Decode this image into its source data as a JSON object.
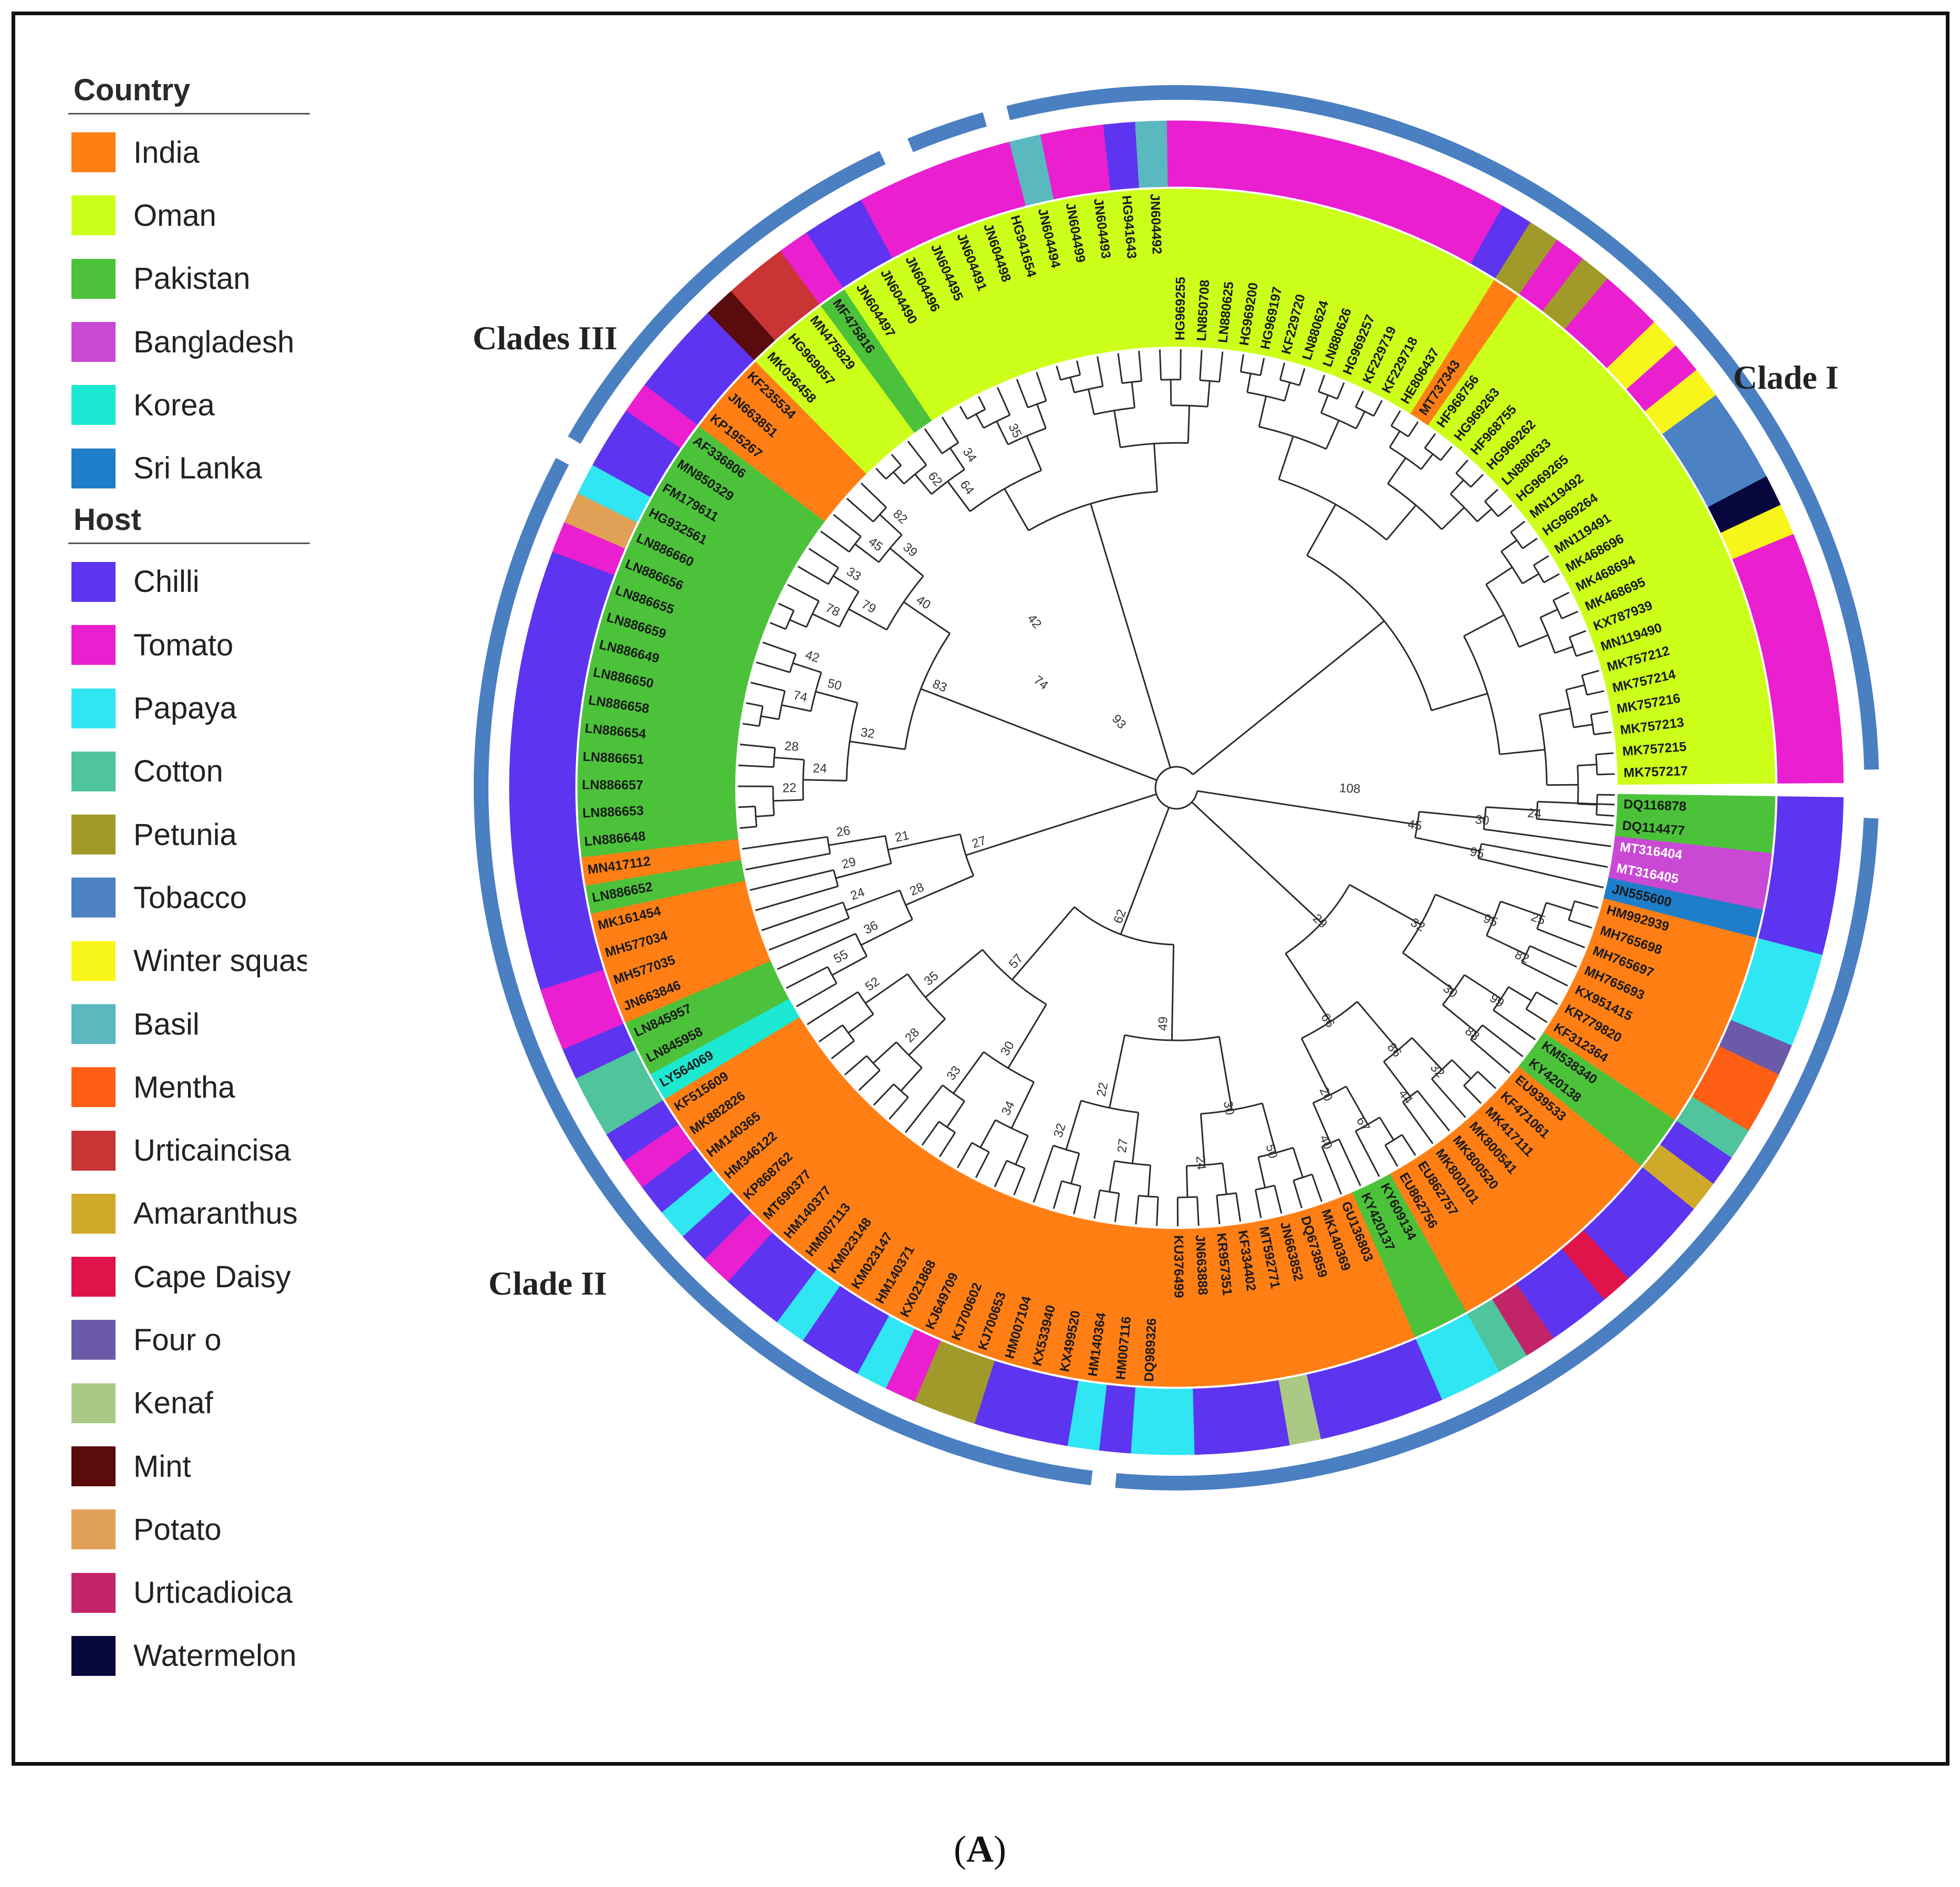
{
  "figure_label": "A",
  "legend": {
    "country_heading": "Country",
    "countries": [
      {
        "name": "India",
        "color": "#ff7f14"
      },
      {
        "name": "Oman",
        "color": "#ccff1a"
      },
      {
        "name": "Pakistan",
        "color": "#4cc23b"
      },
      {
        "name": "Bangladesh",
        "color": "#c949d4"
      },
      {
        "name": "Korea",
        "color": "#1de8d2"
      },
      {
        "name": "Sri Lanka",
        "color": "#1f7ec9"
      }
    ],
    "host_heading": "Host",
    "hosts": [
      {
        "name": "Chilli",
        "color": "#5d35f0"
      },
      {
        "name": "Tomato",
        "color": "#ea1fd0"
      },
      {
        "name": "Papaya",
        "color": "#2fe6f2"
      },
      {
        "name": "Cotton",
        "color": "#4fc49d"
      },
      {
        "name": "Petunia",
        "color": "#a19a2a"
      },
      {
        "name": "Tobacco",
        "color": "#4c82c4"
      },
      {
        "name": "Winter squas",
        "color": "#f8f51a"
      },
      {
        "name": "Basil",
        "color": "#5ab8bf"
      },
      {
        "name": "Mentha",
        "color": "#ff5f14"
      },
      {
        "name": "Urticaincisa",
        "color": "#c93434"
      },
      {
        "name": "Amaranthus",
        "color": "#cfa92a"
      },
      {
        "name": "Cape Daisy",
        "color": "#e0134a"
      },
      {
        "name": "Four o",
        "color": "#6b5aa8"
      },
      {
        "name": "Kenaf",
        "color": "#a9c984"
      },
      {
        "name": "Mint",
        "color": "#5a0b0b"
      },
      {
        "name": "Potato",
        "color": "#e0a055"
      },
      {
        "name": "Urticadioica",
        "color": "#c2246a"
      },
      {
        "name": "Watermelon",
        "color": "#07073d"
      }
    ]
  },
  "clades": {
    "clade1": "Clade I",
    "clade2": "Clade II",
    "clade3": "Clades III"
  },
  "colors": {
    "clade_ring": "#4a7fc1",
    "branch": "#2b2b2b",
    "tip_text": "#1a1a1a",
    "tip_text_pink": "#ffffff"
  },
  "tree": {
    "tips": [
      {
        "id": "DQ116878",
        "country": "Pakistan",
        "host": "Chilli"
      },
      {
        "id": "DQ114477",
        "country": "Pakistan",
        "host": "Chilli"
      },
      {
        "id": "MT316404",
        "country": "Bangladesh",
        "host": "Chilli"
      },
      {
        "id": "MT316405",
        "country": "Bangladesh",
        "host": "Chilli"
      },
      {
        "id": "JN555600",
        "country": "Sri Lanka",
        "host": "Chilli"
      },
      {
        "id": "HM992939",
        "country": "India",
        "host": "Papaya"
      },
      {
        "id": "MH765698",
        "country": "India",
        "host": "Papaya"
      },
      {
        "id": "MH765697",
        "country": "India",
        "host": "Papaya"
      },
      {
        "id": "MH765693",
        "country": "India",
        "host": "Four o"
      },
      {
        "id": "KX951415",
        "country": "India",
        "host": "Mentha"
      },
      {
        "id": "KR779820",
        "country": "India",
        "host": "Mentha"
      },
      {
        "id": "KF312364",
        "country": "India",
        "host": "Cotton"
      },
      {
        "id": "KM538340",
        "country": "Pakistan",
        "host": "Chilli"
      },
      {
        "id": "KY420138",
        "country": "Pakistan",
        "host": "Amaranthus"
      },
      {
        "id": "EU939533",
        "country": "India",
        "host": "Chilli"
      },
      {
        "id": "KF471061",
        "country": "India",
        "host": "Chilli"
      },
      {
        "id": "MK417111",
        "country": "India",
        "host": "Chilli"
      },
      {
        "id": "MK800541",
        "country": "India",
        "host": "Cape Daisy"
      },
      {
        "id": "MK800520",
        "country": "India",
        "host": "Chilli"
      },
      {
        "id": "MK800101",
        "country": "India",
        "host": "Chilli"
      },
      {
        "id": "EU862757",
        "country": "India",
        "host": "Urticadioica"
      },
      {
        "id": "EU862756",
        "country": "India",
        "host": "Cotton"
      },
      {
        "id": "KY609134",
        "country": "Pakistan",
        "host": "Papaya"
      },
      {
        "id": "KY420137",
        "country": "Pakistan",
        "host": "Papaya"
      },
      {
        "id": "GU136803",
        "country": "India",
        "host": "Chilli"
      },
      {
        "id": "MK140369",
        "country": "India",
        "host": "Chilli"
      },
      {
        "id": "DQ673859",
        "country": "India",
        "host": "Chilli"
      },
      {
        "id": "JN663852",
        "country": "India",
        "host": "Chilli"
      },
      {
        "id": "MT592771",
        "country": "India",
        "host": "Kenaf"
      },
      {
        "id": "KF334402",
        "country": "India",
        "host": "Chilli"
      },
      {
        "id": "KR957351",
        "country": "India",
        "host": "Chilli"
      },
      {
        "id": "JN663888",
        "country": "India",
        "host": "Chilli"
      },
      {
        "id": "KU376499",
        "country": "India",
        "host": "Papaya"
      },
      {
        "id": "DQ989326",
        "country": "India",
        "host": "Papaya"
      },
      {
        "id": "HM007116",
        "country": "India",
        "host": "Chilli"
      },
      {
        "id": "HM140364",
        "country": "India",
        "host": "Papaya"
      },
      {
        "id": "KX499520",
        "country": "India",
        "host": "Chilli"
      },
      {
        "id": "KX533940",
        "country": "India",
        "host": "Chilli"
      },
      {
        "id": "HM007104",
        "country": "India",
        "host": "Chilli"
      },
      {
        "id": "KJ700653",
        "country": "India",
        "host": "Petunia"
      },
      {
        "id": "KJ700602",
        "country": "India",
        "host": "Petunia"
      },
      {
        "id": "KJ649709",
        "country": "India",
        "host": "Tomato"
      },
      {
        "id": "KX021868",
        "country": "India",
        "host": "Papaya"
      },
      {
        "id": "HM140371",
        "country": "India",
        "host": "Chilli"
      },
      {
        "id": "KM023147",
        "country": "India",
        "host": "Chilli"
      },
      {
        "id": "KM023148",
        "country": "India",
        "host": "Papaya"
      },
      {
        "id": "HM007113",
        "country": "India",
        "host": "Chilli"
      },
      {
        "id": "HM140377",
        "country": "India",
        "host": "Chilli"
      },
      {
        "id": "MT690377",
        "country": "India",
        "host": "Tomato"
      },
      {
        "id": "KP868762",
        "country": "India",
        "host": "Chilli"
      },
      {
        "id": "HM346122",
        "country": "India",
        "host": "Papaya"
      },
      {
        "id": "HM140365",
        "country": "India",
        "host": "Chilli"
      },
      {
        "id": "MK882826",
        "country": "India",
        "host": "Tomato"
      },
      {
        "id": "KF515609",
        "country": "India",
        "host": "Chilli"
      },
      {
        "id": "LY564069",
        "country": "Korea",
        "host": "Cotton"
      },
      {
        "id": "LN845958",
        "country": "Pakistan",
        "host": "Cotton"
      },
      {
        "id": "LN845957",
        "country": "Pakistan",
        "host": "Chilli"
      },
      {
        "id": "JN663846",
        "country": "India",
        "host": "Tomato"
      },
      {
        "id": "MH577035",
        "country": "India",
        "host": "Tomato"
      },
      {
        "id": "MH577034",
        "country": "India",
        "host": "Chilli"
      },
      {
        "id": "MK161454",
        "country": "India",
        "host": "Chilli"
      },
      {
        "id": "LN886652",
        "country": "Pakistan",
        "host": "Chilli"
      },
      {
        "id": "MN417112",
        "country": "India",
        "host": "Chilli"
      },
      {
        "id": "LN886648",
        "country": "Pakistan",
        "host": "Chilli"
      },
      {
        "id": "LN886653",
        "country": "Pakistan",
        "host": "Chilli"
      },
      {
        "id": "LN886657",
        "country": "Pakistan",
        "host": "Chilli"
      },
      {
        "id": "LN886651",
        "country": "Pakistan",
        "host": "Chilli"
      },
      {
        "id": "LN886654",
        "country": "Pakistan",
        "host": "Chilli"
      },
      {
        "id": "LN886658",
        "country": "Pakistan",
        "host": "Chilli"
      },
      {
        "id": "LN886650",
        "country": "Pakistan",
        "host": "Chilli"
      },
      {
        "id": "LN886649",
        "country": "Pakistan",
        "host": "Chilli"
      },
      {
        "id": "LN886659",
        "country": "Pakistan",
        "host": "Chilli"
      },
      {
        "id": "LN886655",
        "country": "Pakistan",
        "host": "Chilli"
      },
      {
        "id": "LN886656",
        "country": "Pakistan",
        "host": "Tomato"
      },
      {
        "id": "LN886660",
        "country": "Pakistan",
        "host": "Potato"
      },
      {
        "id": "HG932561",
        "country": "Pakistan",
        "host": "Papaya"
      },
      {
        "id": "FM179611",
        "country": "Pakistan",
        "host": "Chilli"
      },
      {
        "id": "MN850329",
        "country": "Pakistan",
        "host": "Chilli"
      },
      {
        "id": "AF336806",
        "country": "Pakistan",
        "host": "Tomato"
      },
      {
        "id": "KP195267",
        "country": "India",
        "host": "Chilli"
      },
      {
        "id": "JN663851",
        "country": "India",
        "host": "Chilli"
      },
      {
        "id": "KF235534",
        "country": "India",
        "host": "Chilli"
      },
      {
        "id": "MK036458",
        "country": "Oman",
        "host": "Mint"
      },
      {
        "id": "HG969057",
        "country": "Oman",
        "host": "Urticaincisa"
      },
      {
        "id": "MN475829",
        "country": "Oman",
        "host": "Urticaincisa"
      },
      {
        "id": "MF475816",
        "country": "Pakistan",
        "host": "Tomato"
      },
      {
        "id": "JN604497",
        "country": "Oman",
        "host": "Chilli"
      },
      {
        "id": "JN604490",
        "country": "Oman",
        "host": "Chilli"
      },
      {
        "id": "JN604496",
        "country": "Oman",
        "host": "Tomato"
      },
      {
        "id": "JN604495",
        "country": "Oman",
        "host": "Tomato"
      },
      {
        "id": "JN604491",
        "country": "Oman",
        "host": "Tomato"
      },
      {
        "id": "JN604498",
        "country": "Oman",
        "host": "Tomato"
      },
      {
        "id": "HG941654",
        "country": "Oman",
        "host": "Tomato"
      },
      {
        "id": "JN604494",
        "country": "Oman",
        "host": "Basil"
      },
      {
        "id": "JN604499",
        "country": "Oman",
        "host": "Tomato"
      },
      {
        "id": "JN604493",
        "country": "Oman",
        "host": "Tomato"
      },
      {
        "id": "HG941643",
        "country": "Oman",
        "host": "Chilli"
      },
      {
        "id": "JN604492",
        "country": "Oman",
        "host": "Basil"
      },
      {
        "id": "HG969255",
        "country": "Oman",
        "host": "Tomato"
      },
      {
        "id": "LN850708",
        "country": "Oman",
        "host": "Tomato"
      },
      {
        "id": "LN880625",
        "country": "Oman",
        "host": "Tomato"
      },
      {
        "id": "HG969200",
        "country": "Oman",
        "host": "Tomato"
      },
      {
        "id": "HG969197",
        "country": "Oman",
        "host": "Tomato"
      },
      {
        "id": "KF229720",
        "country": "Oman",
        "host": "Tomato"
      },
      {
        "id": "LN880624",
        "country": "Oman",
        "host": "Tomato"
      },
      {
        "id": "LN880626",
        "country": "Oman",
        "host": "Tomato"
      },
      {
        "id": "HG969257",
        "country": "Oman",
        "host": "Tomato"
      },
      {
        "id": "KF229719",
        "country": "Oman",
        "host": "Tomato"
      },
      {
        "id": "KF229718",
        "country": "Oman",
        "host": "Tomato"
      },
      {
        "id": "HE806437",
        "country": "Oman",
        "host": "Chilli"
      },
      {
        "id": "MT737343",
        "country": "India",
        "host": "Petunia"
      },
      {
        "id": "HF968756",
        "country": "Oman",
        "host": "Tomato"
      },
      {
        "id": "HG969263",
        "country": "Oman",
        "host": "Petunia"
      },
      {
        "id": "HF968755",
        "country": "Oman",
        "host": "Tomato"
      },
      {
        "id": "HG969262",
        "country": "Oman",
        "host": "Tomato"
      },
      {
        "id": "LN880633",
        "country": "Oman",
        "host": "Winter squas"
      },
      {
        "id": "HG969265",
        "country": "Oman",
        "host": "Tomato"
      },
      {
        "id": "MN119492",
        "country": "Oman",
        "host": "Winter squas"
      },
      {
        "id": "HG969264",
        "country": "Oman",
        "host": "Tobacco"
      },
      {
        "id": "MN119491",
        "country": "Oman",
        "host": "Tobacco"
      },
      {
        "id": "MK468696",
        "country": "Oman",
        "host": "Tobacco"
      },
      {
        "id": "MK468694",
        "country": "Oman",
        "host": "Watermelon"
      },
      {
        "id": "MK468695",
        "country": "Oman",
        "host": "Winter squas"
      },
      {
        "id": "KX787939",
        "country": "Oman",
        "host": "Tomato"
      },
      {
        "id": "MN119490",
        "country": "Oman",
        "host": "Tomato"
      },
      {
        "id": "MK757212",
        "country": "Oman",
        "host": "Tomato"
      },
      {
        "id": "MK757214",
        "country": "Oman",
        "host": "Tomato"
      },
      {
        "id": "MK757216",
        "country": "Oman",
        "host": "Tomato"
      },
      {
        "id": "MK757213",
        "country": "Oman",
        "host": "Tomato"
      },
      {
        "id": "MK757215",
        "country": "Oman",
        "host": "Tomato"
      },
      {
        "id": "MK757217",
        "country": "Oman",
        "host": "Tomato"
      }
    ],
    "bootstrap": [
      "24",
      "30",
      "95",
      "45",
      "25",
      "82",
      "95",
      "99",
      "88",
      "30",
      "32",
      "32",
      "44",
      "86",
      "67",
      "40",
      "20",
      "66",
      "29",
      "50",
      "24",
      "30",
      "27",
      "32",
      "22",
      "49",
      "34",
      "33",
      "30",
      "28",
      "52",
      "35",
      "57",
      "62",
      "55",
      "36",
      "24",
      "28",
      "29",
      "26",
      "21",
      "27",
      "22",
      "28",
      "24",
      "74",
      "42",
      "50",
      "32",
      "78",
      "33",
      "79",
      "45",
      "82",
      "39",
      "40",
      "83",
      "62",
      "34",
      "64",
      "35"
    ],
    "long_branch_labels": {
      "root_right": "108",
      "clade3_stem": "93",
      "clade3_inner": "74",
      "clade1_stem": "42"
    }
  }
}
